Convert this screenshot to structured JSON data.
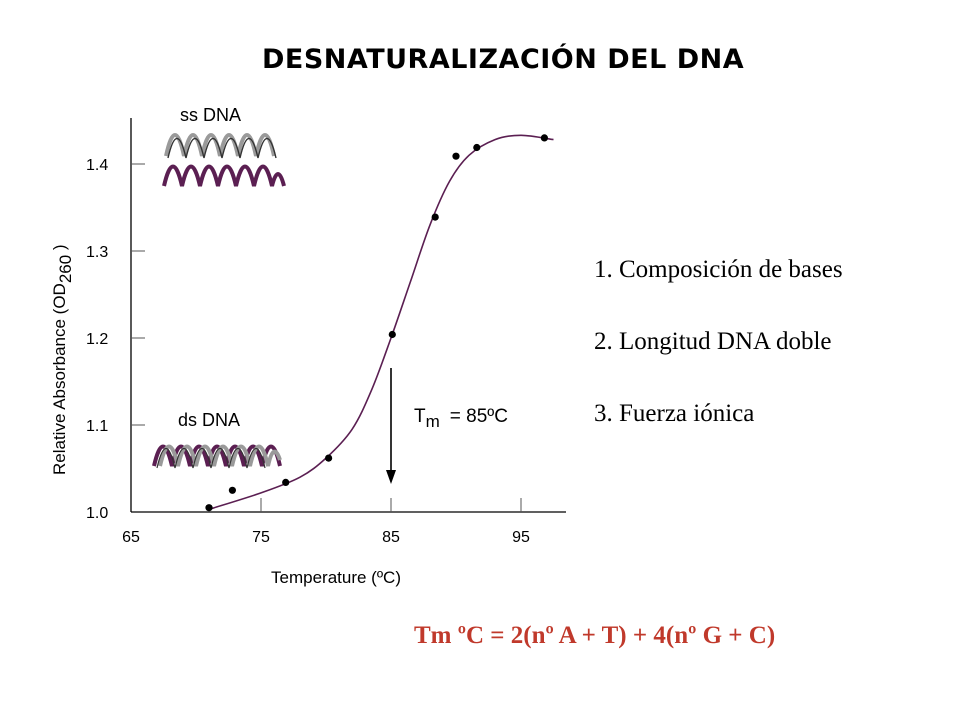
{
  "title": "DESNATURALIZACIÓN DEL DNA",
  "factors": [
    "1. Composición de bases",
    "2. Longitud DNA doble",
    "3. Fuerza iónica"
  ],
  "formula": "Tm ºC = 2(nº A + T) + 4(nº G + C)",
  "colors": {
    "curve": "#5b1f52",
    "formula": "#c0392b",
    "helix_dark": "#5b1f52",
    "helix_grey": "#9a9a9a"
  },
  "chart_data": {
    "type": "scatter",
    "title": "",
    "xlabel": "Temperature (ºC)",
    "ylabel_main": "Relative Absorbance (OD",
    "ylabel_sub": "260",
    "ylabel_end": " )",
    "xlim": [
      65,
      100
    ],
    "ylim": [
      1.0,
      1.45
    ],
    "x_ticks": [
      65,
      75,
      85,
      95
    ],
    "y_ticks": [
      1.0,
      1.1,
      1.2,
      1.3,
      1.4
    ],
    "x_tick_labels": [
      "65",
      "75",
      "85",
      "95"
    ],
    "y_tick_labels": [
      "1.0",
      "1.1",
      "1.2",
      "1.3",
      "1.4"
    ],
    "points": [
      {
        "x": 71.0,
        "y": 1.005
      },
      {
        "x": 72.8,
        "y": 1.025
      },
      {
        "x": 76.9,
        "y": 1.034
      },
      {
        "x": 80.2,
        "y": 1.062
      },
      {
        "x": 85.1,
        "y": 1.204
      },
      {
        "x": 88.4,
        "y": 1.339
      },
      {
        "x": 90.0,
        "y": 1.409
      },
      {
        "x": 91.6,
        "y": 1.419
      },
      {
        "x": 96.8,
        "y": 1.43
      }
    ],
    "curve": [
      {
        "x": 71,
        "y": 1.003
      },
      {
        "x": 75,
        "y": 1.022
      },
      {
        "x": 78,
        "y": 1.04
      },
      {
        "x": 80,
        "y": 1.062
      },
      {
        "x": 82,
        "y": 1.095
      },
      {
        "x": 83.5,
        "y": 1.14
      },
      {
        "x": 85,
        "y": 1.2
      },
      {
        "x": 86.5,
        "y": 1.265
      },
      {
        "x": 88,
        "y": 1.33
      },
      {
        "x": 89.5,
        "y": 1.38
      },
      {
        "x": 91,
        "y": 1.41
      },
      {
        "x": 93,
        "y": 1.428
      },
      {
        "x": 95,
        "y": 1.433
      },
      {
        "x": 97.5,
        "y": 1.428
      }
    ],
    "tm": {
      "x": 85,
      "label_main": "T",
      "label_sub": "m",
      "label_value": "= 85ºC"
    },
    "annotations": {
      "ss": "ss DNA",
      "ds": "ds DNA"
    }
  }
}
